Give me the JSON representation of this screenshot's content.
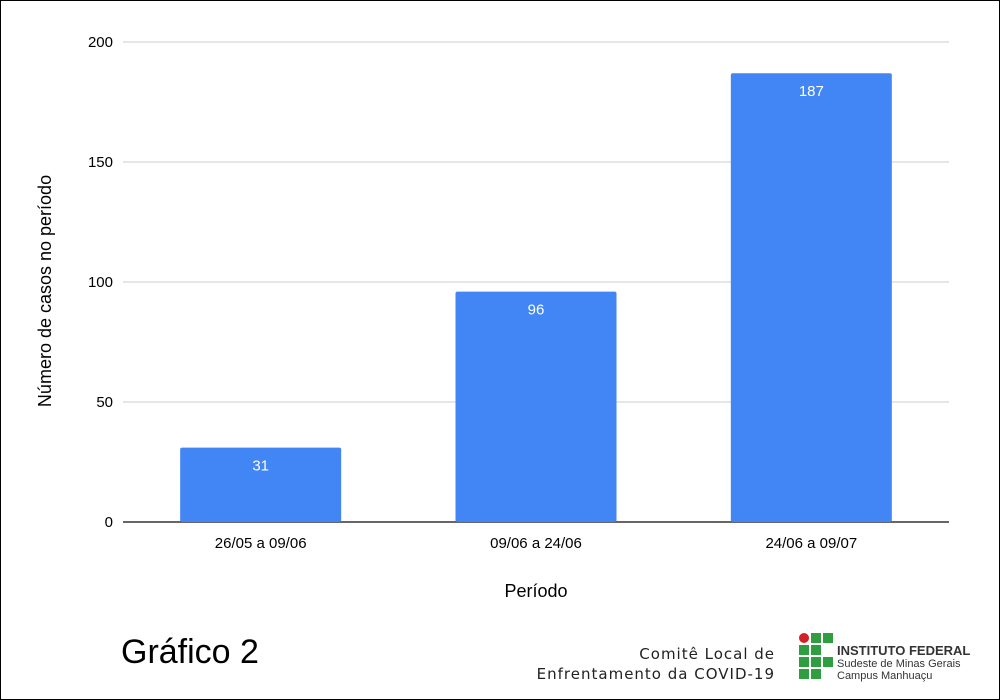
{
  "chart_data": {
    "type": "bar",
    "categories": [
      "26/05 a 09/06",
      "09/06 a 24/06",
      "24/06 a 09/07"
    ],
    "values": [
      31,
      96,
      187
    ],
    "xlabel": "Período",
    "ylabel": "Número de casos no período",
    "ylim": [
      0,
      200
    ],
    "yticks": [
      0,
      50,
      100,
      150,
      200
    ],
    "grid": true,
    "bar_color": "#4285f4"
  },
  "footer": {
    "title": "Gráfico 2",
    "committee_line1": "Comitê Local de",
    "committee_line2": "Enfrentamento da COVID-19",
    "logo": {
      "name": "INSTITUTO FEDERAL",
      "line2": "Sudeste de Minas Gerais",
      "line3": "Campus Manhuaçu",
      "red": "#d12229",
      "green": "#2f9e41"
    }
  }
}
